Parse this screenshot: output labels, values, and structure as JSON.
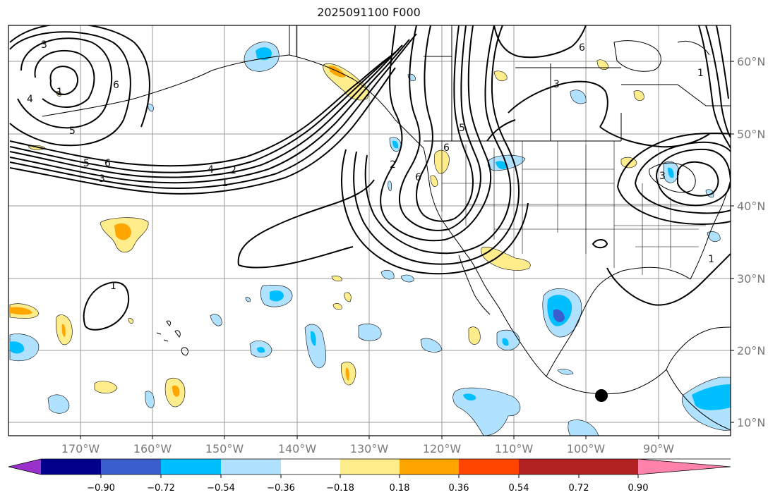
{
  "title": "2025091100 F000",
  "lat_labels": [
    "60°N",
    "50°N",
    "40°N",
    "30°N",
    "20°N",
    "10°N"
  ],
  "lon_labels": [
    "170°W",
    "160°W",
    "150°W",
    "140°W",
    "130°W",
    "120°W",
    "110°W",
    "100°W",
    "90°W"
  ],
  "colorbar": {
    "colors": [
      "#9932cc",
      "#00008b",
      "#3a5fcd",
      "#00bfff",
      "#b0e2ff",
      "#ffffff",
      "#ffec8b",
      "#ffa500",
      "#ff4500",
      "#b22222",
      "#ff82ab"
    ],
    "tick_labels": [
      "−0.90",
      "−0.72",
      "−0.54",
      "−0.36",
      "−0.18",
      "0.18",
      "0.36",
      "0.54",
      "0.72",
      "0.90"
    ]
  },
  "contour_labels": [
    "3",
    "4",
    "5",
    "6",
    "1",
    "5",
    "6",
    "4",
    "3",
    "1",
    "2",
    "5",
    "6",
    "2",
    "6",
    "3",
    "6",
    "1",
    "3",
    "1",
    "1"
  ],
  "marker": {
    "lat": "13.5°N",
    "lon": "97°W"
  }
}
